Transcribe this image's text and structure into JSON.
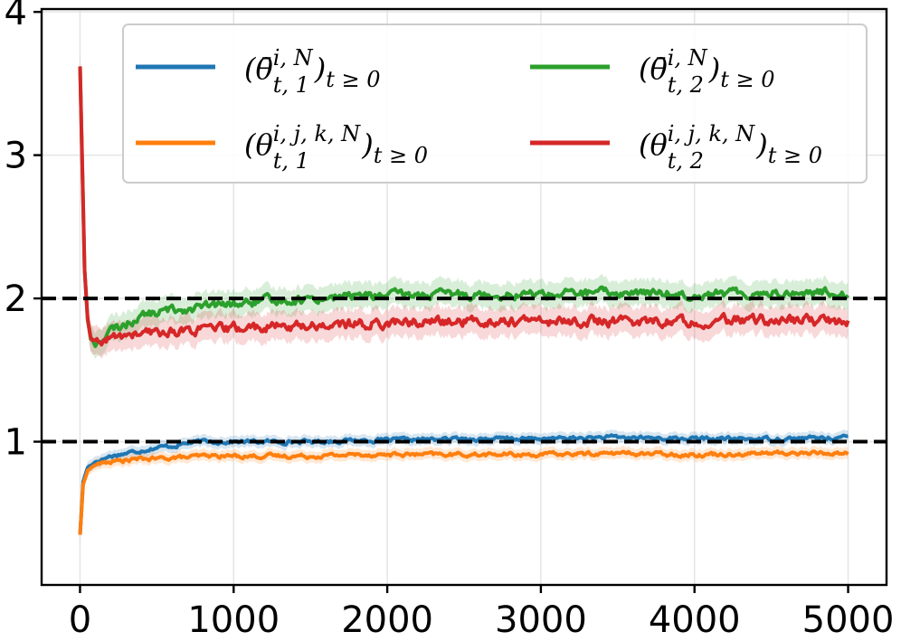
{
  "chart_data": {
    "type": "line",
    "title": "",
    "xlabel": "",
    "ylabel": "",
    "xlim": [
      -250,
      5250
    ],
    "ylim": [
      0.0,
      4.02
    ],
    "x_ticks": [
      0,
      1000,
      2000,
      3000,
      4000,
      5000
    ],
    "x_tick_labels": [
      "0",
      "1000",
      "2000",
      "3000",
      "4000",
      "5000"
    ],
    "y_ticks": [
      1,
      2,
      3,
      4
    ],
    "y_tick_labels": [
      "1",
      "2",
      "3",
      "4"
    ],
    "grid": true,
    "reference_lines": [
      {
        "y": 2,
        "style": "dashed",
        "color": "#000000"
      },
      {
        "y": 1,
        "style": "dashed",
        "color": "#000000"
      }
    ],
    "legend_position": "top-right",
    "series": [
      {
        "name": "theta_bar_1",
        "legend": {
          "open": "(θ̄",
          "sup": "i, N",
          "sub": "t, 1",
          "close": ")",
          "tail": "t ≥ 0"
        },
        "color": "#1f77b4",
        "band": 0.04,
        "x": [
          0,
          20,
          50,
          100,
          150,
          200,
          300,
          400,
          500,
          600,
          700,
          800,
          1000,
          1200,
          1500,
          1800,
          2000,
          2500,
          3000,
          3500,
          4000,
          4500,
          5000
        ],
        "values": [
          0.35,
          0.72,
          0.82,
          0.86,
          0.88,
          0.9,
          0.92,
          0.94,
          0.96,
          0.97,
          0.99,
          1.0,
          1.0,
          1.0,
          1.0,
          1.01,
          1.01,
          1.02,
          1.02,
          1.03,
          1.02,
          1.02,
          1.03
        ]
      },
      {
        "name": "theta_ijk_1",
        "legend": {
          "open": "(θ",
          "sup": "i, j, k, N",
          "sub": "t, 1",
          "close": ")",
          "tail": "t ≥ 0"
        },
        "color": "#ff7f0e",
        "band": 0.04,
        "x": [
          0,
          20,
          50,
          100,
          150,
          200,
          300,
          400,
          500,
          600,
          700,
          800,
          1000,
          1200,
          1500,
          1800,
          2000,
          2500,
          3000,
          3500,
          4000,
          4500,
          5000
        ],
        "values": [
          0.35,
          0.7,
          0.8,
          0.84,
          0.85,
          0.86,
          0.87,
          0.88,
          0.88,
          0.89,
          0.89,
          0.9,
          0.9,
          0.9,
          0.9,
          0.91,
          0.91,
          0.91,
          0.91,
          0.92,
          0.91,
          0.92,
          0.92
        ]
      },
      {
        "name": "theta_bar_2",
        "legend": {
          "open": "(θ̄",
          "sup": "i, N",
          "sub": "t, 2",
          "close": ")",
          "tail": "t ≥ 0"
        },
        "color": "#2ca02c",
        "band": 0.09,
        "x": [
          0,
          15,
          30,
          50,
          70,
          100,
          150,
          200,
          300,
          400,
          500,
          600,
          800,
          1000,
          1200,
          1500,
          1800,
          2000,
          2500,
          3000,
          3500,
          4000,
          4500,
          5000
        ],
        "values": [
          3.62,
          2.9,
          2.2,
          1.85,
          1.72,
          1.68,
          1.72,
          1.77,
          1.82,
          1.88,
          1.9,
          1.92,
          1.94,
          1.96,
          1.98,
          2.0,
          2.02,
          2.02,
          2.03,
          2.03,
          2.04,
          2.03,
          2.04,
          2.04
        ]
      },
      {
        "name": "theta_ijk_2",
        "legend": {
          "open": "(θ",
          "sup": "i, j, k, N",
          "sub": "t, 2",
          "close": ")",
          "tail": "t ≥ 0"
        },
        "color": "#d62728",
        "band": 0.1,
        "x": [
          0,
          15,
          30,
          50,
          70,
          100,
          150,
          200,
          300,
          400,
          500,
          600,
          800,
          1000,
          1200,
          1500,
          1800,
          2000,
          2500,
          3000,
          3500,
          4000,
          4500,
          5000
        ],
        "values": [
          3.62,
          2.9,
          2.2,
          1.85,
          1.72,
          1.68,
          1.7,
          1.72,
          1.74,
          1.75,
          1.76,
          1.77,
          1.78,
          1.79,
          1.8,
          1.81,
          1.82,
          1.83,
          1.84,
          1.84,
          1.84,
          1.84,
          1.85,
          1.84
        ]
      }
    ]
  }
}
